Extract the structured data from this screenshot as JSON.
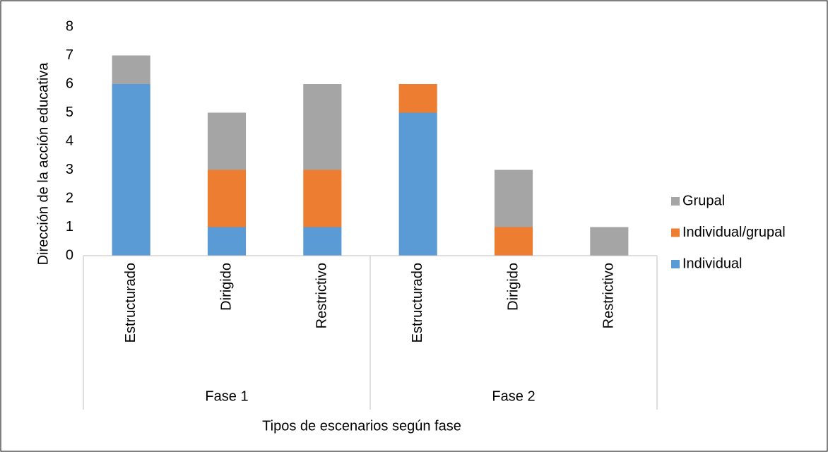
{
  "chart_data": {
    "type": "stacked_bar",
    "categories": [
      "Estructurado",
      "Dirigido",
      "Restrictivo",
      "Estructurado",
      "Dirigido",
      "Restrictivo"
    ],
    "groups": [
      "Fase 1",
      "Fase 2"
    ],
    "series": [
      {
        "name": "Individual",
        "color": "#5b9bd5",
        "values": [
          6,
          1,
          1,
          5,
          0,
          0
        ]
      },
      {
        "name": "Individual/grupal",
        "color": "#ed7d31",
        "values": [
          0,
          2,
          2,
          1,
          1,
          0
        ]
      },
      {
        "name": "Grupal",
        "color": "#a5a5a5",
        "values": [
          1,
          2,
          3,
          0,
          2,
          1
        ]
      }
    ],
    "ylim": [
      0,
      8
    ],
    "yticks": [
      0,
      1,
      2,
      3,
      4,
      5,
      6,
      7,
      8
    ],
    "xlabel": "Tipos de escenarios según fase",
    "ylabel": "Dirección de la acción educativa",
    "legend": "right",
    "grid": false
  }
}
